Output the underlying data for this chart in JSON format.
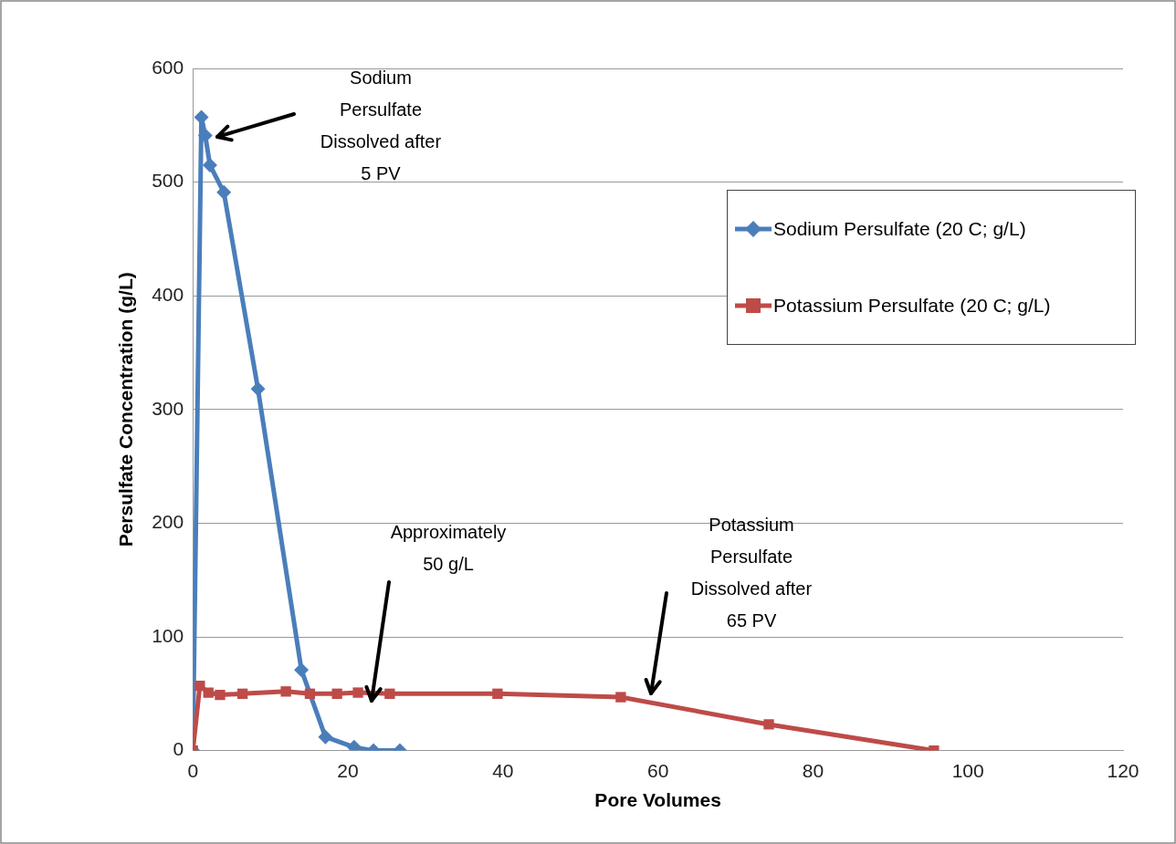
{
  "chart_data": {
    "type": "line",
    "xlabel": "Pore Volumes",
    "ylabel": "Persulfate Concentration (g/L)",
    "xlim": [
      0,
      120
    ],
    "xticks": [
      0,
      20,
      40,
      60,
      80,
      100,
      120
    ],
    "ylim": [
      0,
      600
    ],
    "yticks": [
      0,
      100,
      200,
      300,
      400,
      500,
      600
    ],
    "grid": "y",
    "legend": "right",
    "series": [
      {
        "name": "Sodium Persulfate (20 C; g/L)",
        "color": "#4a7ebb",
        "marker": "diamond",
        "x": [
          0,
          1.1,
          1.6,
          2.2,
          4,
          8.4,
          14,
          17.1,
          20.8,
          23.3,
          26.7
        ],
        "values": [
          0,
          557,
          541,
          515,
          491,
          318,
          71,
          12,
          3,
          0,
          0
        ]
      },
      {
        "name": "Potassium Persulfate (20 C; g/L)",
        "color": "#be4b48",
        "marker": "square",
        "x": [
          0,
          0.9,
          2,
          3.5,
          6.4,
          12,
          15.1,
          18.6,
          21.3,
          25.4,
          39.3,
          55.2,
          74.3,
          95.6
        ],
        "values": [
          0,
          57,
          51,
          49,
          50,
          52,
          50,
          50,
          51,
          50,
          50,
          47,
          23,
          0
        ]
      }
    ],
    "annotations": [
      "Sodium\nPersulfate\nDissolved after\n5 PV",
      "Approximately\n50 g/L",
      "Potassium\nPersulfate\nDissolved after\n65 PV"
    ]
  }
}
